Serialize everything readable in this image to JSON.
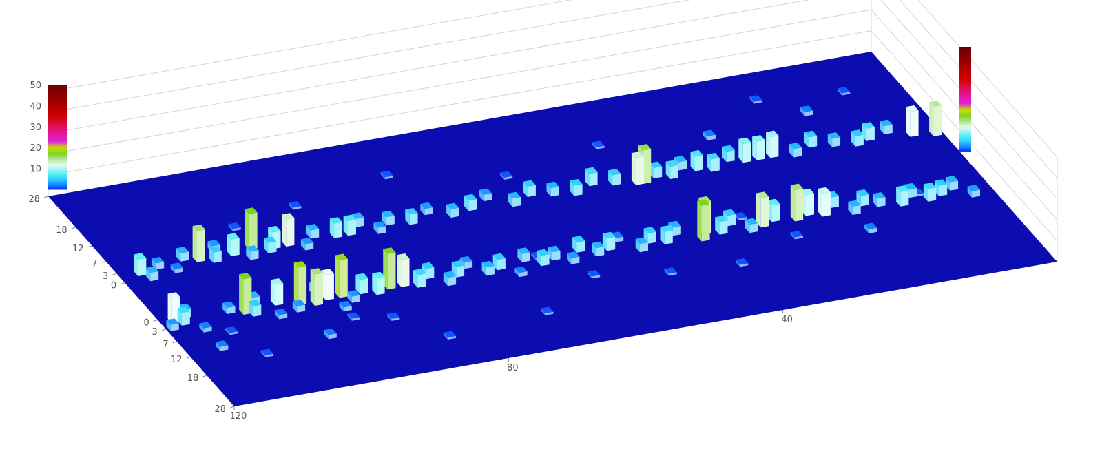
{
  "chart_data": {
    "type": "lego3d",
    "xlim": [
      120,
      0
    ],
    "xticks": [
      120,
      80,
      40
    ],
    "zlim": [
      0,
      50
    ],
    "zticks": [
      10,
      20,
      30,
      40,
      50
    ],
    "floor_color": "#0b0db0",
    "colormap": [
      {
        "value": 0,
        "color": "#0a2cff"
      },
      {
        "value": 2,
        "color": "#1580ff"
      },
      {
        "value": 5,
        "color": "#2fd0ff"
      },
      {
        "value": 8,
        "color": "#5ff2f2"
      },
      {
        "value": 12,
        "color": "#e6fafa"
      },
      {
        "value": 17,
        "color": "#7ed321"
      },
      {
        "value": 20,
        "color": "#c6e000"
      },
      {
        "value": 23,
        "color": "#e020e0"
      },
      {
        "value": 30,
        "color": "#e01060"
      },
      {
        "value": 35,
        "color": "#d00000"
      },
      {
        "value": 50,
        "color": "#6a0000"
      }
    ],
    "panels": [
      {
        "reverse": true,
        "ylim": [
          0,
          28
        ],
        "yticks": [
          0,
          3,
          7,
          12,
          18,
          28
        ],
        "x": [
          118,
          117,
          116,
          119,
          115,
          112,
          110,
          108,
          107,
          106,
          104,
          103,
          101,
          100,
          98,
          97,
          96,
          95,
          94,
          93,
          91,
          89,
          88,
          87,
          85,
          83,
          81,
          79,
          77,
          75,
          73,
          71,
          69,
          67,
          65,
          63,
          61,
          59,
          57,
          55,
          53,
          51,
          49,
          47,
          45,
          42,
          41,
          39,
          37,
          35,
          33,
          31,
          28,
          26,
          24,
          22,
          20,
          18,
          16,
          13,
          11,
          9,
          7,
          5,
          3,
          60,
          90,
          50,
          30,
          100,
          110,
          70,
          20,
          40,
          85,
          115,
          95,
          65,
          35,
          10
        ],
        "y": [
          1,
          2,
          0,
          3,
          5,
          7,
          1,
          2,
          3,
          0,
          5,
          1,
          4,
          2,
          3,
          0,
          2,
          6,
          2,
          4,
          2,
          3,
          1,
          2,
          2,
          3,
          1,
          4,
          2,
          0,
          3,
          2,
          5,
          1,
          3,
          2,
          4,
          1,
          3,
          2,
          0,
          4,
          2,
          3,
          1,
          4,
          2,
          3,
          1,
          4,
          3,
          2,
          3,
          2,
          3,
          1,
          4,
          2,
          3,
          4,
          2,
          4,
          3,
          2,
          5,
          9,
          11,
          12,
          8,
          13,
          15,
          17,
          10,
          13,
          19,
          11,
          9,
          1,
          0,
          2
        ],
        "values": [
          12,
          6,
          4,
          3,
          2,
          1,
          3,
          17,
          5,
          4,
          2,
          10,
          3,
          18,
          15,
          4,
          12,
          2,
          18,
          3,
          7,
          8,
          4,
          17,
          13,
          6,
          5,
          4,
          5,
          3,
          4,
          5,
          2,
          4,
          5,
          4,
          3,
          5,
          4,
          6,
          2,
          4,
          5,
          6,
          4,
          17,
          15,
          6,
          5,
          4,
          14,
          8,
          15,
          10,
          11,
          5,
          4,
          5,
          4,
          7,
          4,
          6,
          5,
          4,
          3,
          1,
          1,
          1,
          1,
          2,
          1,
          1,
          2,
          1,
          1,
          2,
          1,
          1,
          1,
          1
        ]
      },
      {
        "reverse": false,
        "ylim": [
          0,
          28
        ],
        "yticks": [
          0,
          3,
          7,
          12,
          18,
          28
        ],
        "x": [
          117,
          116,
          114,
          112,
          110,
          108,
          106,
          105,
          103,
          101,
          100,
          98,
          97,
          95,
          93,
          91,
          88,
          86,
          84,
          82,
          80,
          77,
          74,
          71,
          68,
          65,
          62,
          59,
          56,
          53,
          50,
          47,
          44,
          43,
          41,
          39,
          37,
          35,
          33,
          30,
          28,
          26,
          24,
          21,
          18,
          15,
          12,
          10,
          7,
          4,
          1,
          60,
          90,
          30,
          45,
          75,
          15,
          100,
          20,
          8
        ],
        "y": [
          2,
          0,
          3,
          1,
          4,
          3,
          2,
          5,
          3,
          1,
          4,
          2,
          3,
          3,
          1,
          4,
          3,
          3,
          5,
          2,
          4,
          3,
          5,
          3,
          4,
          6,
          3,
          5,
          4,
          3,
          5,
          4,
          3,
          3,
          4,
          3,
          5,
          4,
          3,
          5,
          4,
          4,
          4,
          3,
          5,
          4,
          3,
          4,
          5,
          3,
          2,
          11,
          13,
          12,
          15,
          17,
          14,
          10,
          20,
          18
        ],
        "values": [
          8,
          4,
          3,
          2,
          4,
          15,
          5,
          3,
          8,
          4,
          17,
          5,
          8,
          13,
          3,
          4,
          7,
          7,
          4,
          3,
          4,
          5,
          3,
          4,
          5,
          3,
          4,
          5,
          4,
          5,
          6,
          5,
          13,
          16,
          5,
          6,
          4,
          7,
          6,
          5,
          9,
          9,
          10,
          4,
          5,
          4,
          5,
          6,
          4,
          12,
          14,
          1,
          1,
          2,
          1,
          1,
          2,
          1,
          1,
          1
        ]
      }
    ]
  }
}
